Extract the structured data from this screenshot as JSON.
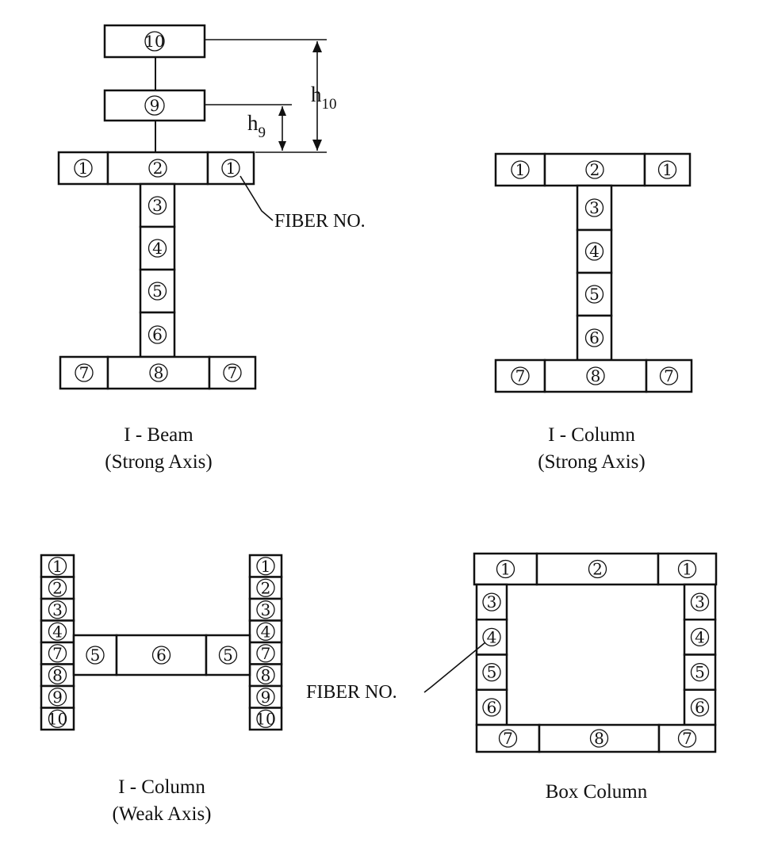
{
  "captions": {
    "i_beam": {
      "line1": "I - Beam",
      "line2": "(Strong Axis)"
    },
    "i_column_strong": {
      "line1": "I - Column",
      "line2": "(Strong Axis)"
    },
    "i_column_weak": {
      "line1": "I - Column",
      "line2": "(Weak Axis)"
    },
    "box_column": {
      "line1": "Box  Column"
    }
  },
  "callouts": {
    "fiber_no_top": "FIBER NO.",
    "fiber_no_bottom": "FIBER NO."
  },
  "dimensions": {
    "h10": {
      "base": "h",
      "sub": "10"
    },
    "h9": {
      "base": "h",
      "sub": "9"
    }
  },
  "fibers": {
    "i_beam": [
      "10",
      "9",
      "1",
      "2",
      "1",
      "3",
      "4",
      "5",
      "6",
      "7",
      "8",
      "7"
    ],
    "i_column_strong": [
      "1",
      "2",
      "1",
      "3",
      "4",
      "5",
      "6",
      "7",
      "8",
      "7"
    ],
    "i_column_weak_left": [
      "1",
      "2",
      "3",
      "4",
      "7",
      "8",
      "9",
      "10"
    ],
    "i_column_weak_web": [
      "5",
      "6",
      "5"
    ],
    "i_column_weak_right": [
      "1",
      "2",
      "3",
      "4",
      "7",
      "8",
      "9",
      "10"
    ],
    "box_column_top": [
      "1",
      "2",
      "1"
    ],
    "box_column_left": [
      "3",
      "4",
      "5",
      "6"
    ],
    "box_column_right": [
      "3",
      "4",
      "5",
      "6"
    ],
    "box_column_bottom": [
      "7",
      "8",
      "7"
    ]
  }
}
